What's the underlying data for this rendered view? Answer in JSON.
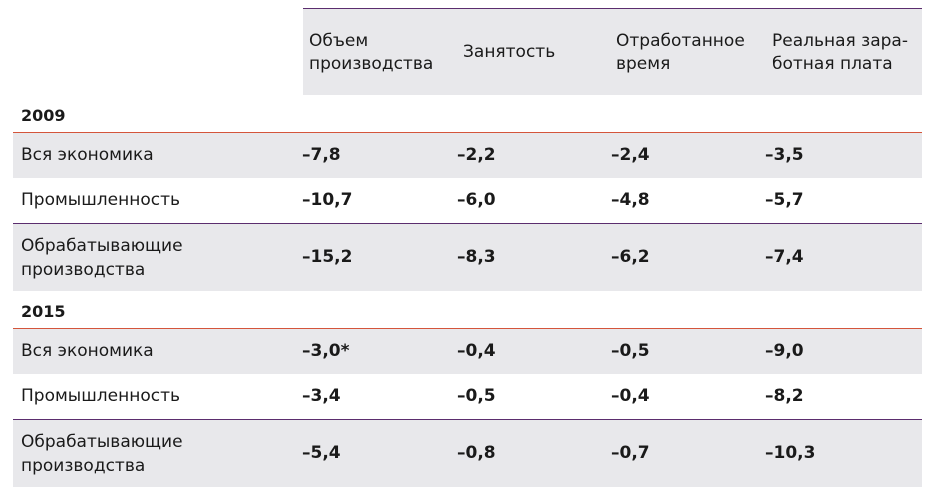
{
  "header": {
    "columns": [
      "Объем\nпроизводства",
      "Занятость",
      "Отработанное\nвремя",
      "Реальная зара-\nботная плата"
    ]
  },
  "sections": [
    {
      "year": "2009",
      "rows": [
        {
          "label": "Вся экономика",
          "values": [
            "–7,8",
            "–2,2",
            "–2,4",
            "–3,5"
          ]
        },
        {
          "label": "Промышленность",
          "values": [
            "–10,7",
            "–6,0",
            "–4,8",
            "–5,7"
          ]
        },
        {
          "label": "Обрабатывающие\nпроизводства",
          "values": [
            "–15,2",
            "–8,3",
            "–6,2",
            "–7,4"
          ]
        }
      ]
    },
    {
      "year": "2015",
      "rows": [
        {
          "label": "Вся экономика",
          "values": [
            "–3,0*",
            "–0,4",
            "–0,5",
            "–9,0"
          ]
        },
        {
          "label": "Промышленность",
          "values": [
            "–3,4",
            "–0,5",
            "–0,4",
            "–8,2"
          ]
        },
        {
          "label": "Обрабатывающие\nпроизводства",
          "values": [
            "–5,4",
            "–0,8",
            "–0,7",
            "–10,3"
          ]
        }
      ]
    }
  ],
  "colors": {
    "row_shade": "#e8e8eb",
    "accent_purple": "#5b2d6e",
    "accent_red": "#d4553b"
  }
}
